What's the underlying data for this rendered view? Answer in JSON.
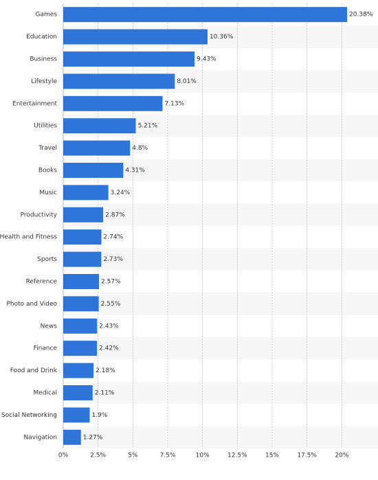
{
  "chart_data": {
    "type": "hbar",
    "categories": [
      "Games",
      "Education",
      "Business",
      "Lifestyle",
      "Entertainment",
      "Utilities",
      "Travel",
      "Books",
      "Music",
      "Productivity",
      "Health and Fitness",
      "Sports",
      "Reference",
      "Photo and Video",
      "News",
      "Finance",
      "Food and Drink",
      "Medical",
      "Social Networking",
      "Navigation"
    ],
    "values": [
      20.38,
      10.36,
      9.43,
      8.01,
      7.13,
      5.21,
      4.8,
      4.31,
      3.24,
      2.87,
      2.74,
      2.73,
      2.57,
      2.55,
      2.43,
      2.42,
      2.18,
      2.11,
      1.9,
      1.27
    ],
    "value_labels": [
      "20.38%",
      "10.36%",
      "9.43%",
      "8.01%",
      "7.13%",
      "5.21%",
      "4.8%",
      "4.31%",
      "3.24%",
      "2.87%",
      "2.74%",
      "2.73%",
      "2.57%",
      "2.55%",
      "2.43%",
      "2.42%",
      "2.18%",
      "2.11%",
      "1.9%",
      "1.27%"
    ],
    "color": "#2f74d8",
    "xlim": [
      0,
      22.5
    ],
    "xticks": [
      {
        "value": 0,
        "label": "0%"
      },
      {
        "value": 2.5,
        "label": "2.5%"
      },
      {
        "value": 5,
        "label": "5%"
      },
      {
        "value": 7.5,
        "label": "7.5%"
      },
      {
        "value": 10,
        "label": "10%"
      },
      {
        "value": 12.5,
        "label": "12.5%"
      },
      {
        "value": 15,
        "label": "15%"
      },
      {
        "value": 17.5,
        "label": "17.5%"
      },
      {
        "value": 20,
        "label": "20%"
      }
    ],
    "grid": true
  }
}
